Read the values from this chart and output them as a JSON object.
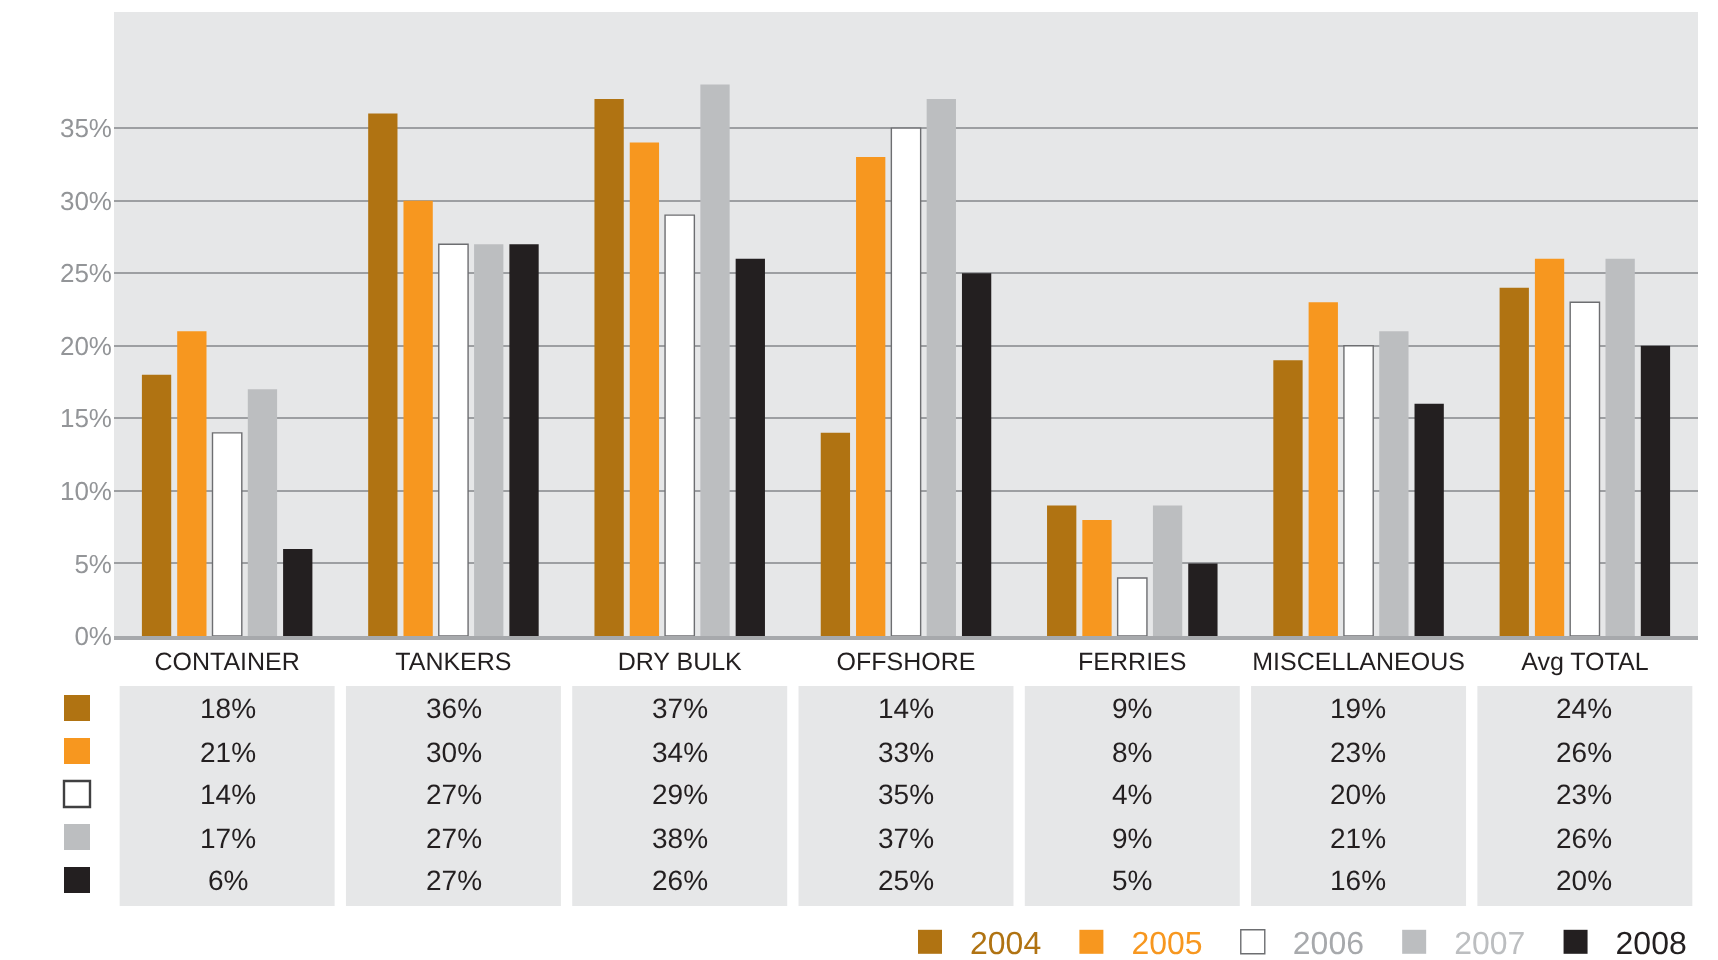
{
  "chart_data": {
    "type": "bar",
    "categories": [
      "CONTAINER",
      "TANKERS",
      "DRY BULK",
      "OFFSHORE",
      "FERRIES",
      "MISCELLANEOUS",
      "Avg TOTAL"
    ],
    "series": [
      {
        "name": "2004",
        "color": "#b07312",
        "values": [
          18,
          36,
          37,
          14,
          9,
          19,
          24
        ],
        "value_labels": [
          "18%",
          "36%",
          "37%",
          "14%",
          "9%",
          "19%",
          "24%"
        ]
      },
      {
        "name": "2005",
        "color": "#f7971f",
        "values": [
          21,
          30,
          34,
          33,
          8,
          23,
          26
        ],
        "value_labels": [
          "21%",
          "30%",
          "34%",
          "33%",
          "8%",
          "23%",
          "26%"
        ]
      },
      {
        "name": "2006",
        "color": "#ffffff",
        "values": [
          14,
          27,
          29,
          35,
          4,
          20,
          23
        ],
        "value_labels": [
          "14%",
          "27%",
          "29%",
          "35%",
          "4%",
          "20%",
          "23%"
        ]
      },
      {
        "name": "2007",
        "color": "#bcbec0",
        "values": [
          17,
          27,
          38,
          37,
          9,
          21,
          26
        ],
        "value_labels": [
          "17%",
          "27%",
          "38%",
          "37%",
          "9%",
          "21%",
          "26%"
        ]
      },
      {
        "name": "2008",
        "color": "#231f20",
        "values": [
          6,
          27,
          26,
          25,
          5,
          16,
          20
        ],
        "value_labels": [
          "6%",
          "27%",
          "26%",
          "25%",
          "5%",
          "16%",
          "20%"
        ]
      }
    ],
    "ylim": [
      0,
      43
    ],
    "yticks": [
      {
        "value": 0,
        "label": "0%"
      },
      {
        "value": 5,
        "label": "5%"
      },
      {
        "value": 10,
        "label": "10%"
      },
      {
        "value": 15,
        "label": "15%"
      },
      {
        "value": 20,
        "label": "20%"
      },
      {
        "value": 25,
        "label": "25%"
      },
      {
        "value": 30,
        "label": "30%"
      },
      {
        "value": 35,
        "label": "35%"
      }
    ],
    "grid": "y",
    "legend": "bottom right"
  }
}
